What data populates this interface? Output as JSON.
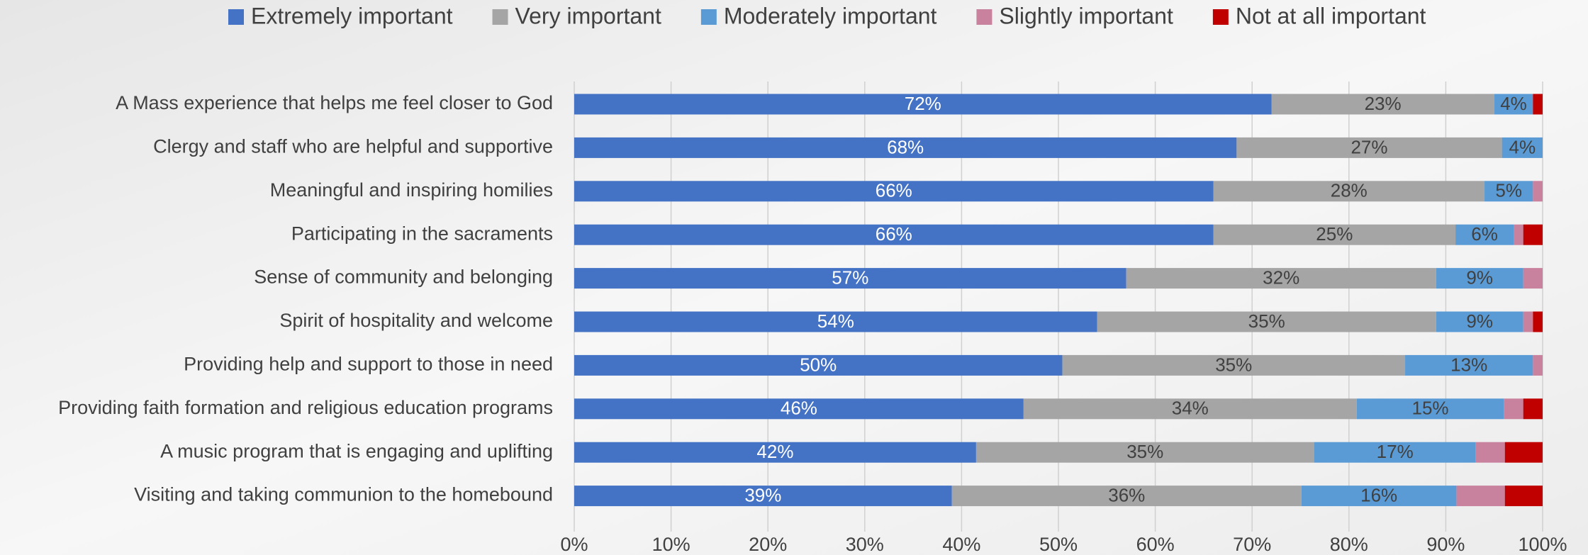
{
  "chart_data": {
    "type": "stacked-bar-horizontal",
    "categories": [
      "A Mass experience that helps me feel closer to God",
      "Clergy and staff who are helpful and supportive",
      "Meaningful and inspiring homilies",
      "Participating in the sacraments",
      "Sense of community and belonging",
      "Spirit of hospitality and welcome",
      "Providing help and support to those in need",
      "Providing faith formation and religious education programs",
      "A music program that is engaging and uplifting",
      "Visiting and taking communion to the homebound"
    ],
    "series": [
      {
        "name": "Extremely important",
        "color": "#4472c4",
        "label_color": "#ffffff",
        "values": [
          72,
          68.4,
          66,
          66,
          57,
          54,
          50.4,
          46.4,
          41.5,
          39
        ],
        "value_labels": [
          "72%",
          "68%",
          "66%",
          "66%",
          "57%",
          "54%",
          "50%",
          "46%",
          "42%",
          "39%"
        ]
      },
      {
        "name": "Very important",
        "color": "#a5a5a5",
        "label_color": "#404040",
        "values": [
          23,
          27.4,
          28,
          25,
          32,
          35,
          35.4,
          34.4,
          34.9,
          36.1
        ],
        "value_labels": [
          "23%",
          "27%",
          "28%",
          "25%",
          "32%",
          "35%",
          "35%",
          "34%",
          "35%",
          "36%"
        ]
      },
      {
        "name": "Moderately important",
        "color": "#5b9bd5",
        "label_color": "#404040",
        "values": [
          4,
          4.2,
          5,
          6,
          9,
          9,
          13.2,
          15.2,
          16.7,
          16
        ],
        "value_labels": [
          "4%",
          "4%",
          "5%",
          "6%",
          "9%",
          "9%",
          "13%",
          "15%",
          "17%",
          "16%"
        ]
      },
      {
        "name": "Slightly important",
        "color": "#c9829e",
        "values": [
          0,
          0,
          1,
          1,
          2,
          1,
          1,
          2,
          3,
          5
        ]
      },
      {
        "name": "Not at all important",
        "color": "#c00000",
        "values": [
          1,
          0,
          0,
          2,
          0,
          1,
          0,
          2,
          3.9,
          3.9
        ]
      }
    ],
    "xlim": [
      0,
      100
    ],
    "xticks": [
      {
        "value": 0,
        "label": "0%"
      },
      {
        "value": 10,
        "label": "10%"
      },
      {
        "value": 20,
        "label": "20%"
      },
      {
        "value": 30,
        "label": "30%"
      },
      {
        "value": 40,
        "label": "40%"
      },
      {
        "value": 50,
        "label": "50%"
      },
      {
        "value": 60,
        "label": "60%"
      },
      {
        "value": 70,
        "label": "70%"
      },
      {
        "value": 80,
        "label": "80%"
      },
      {
        "value": 90,
        "label": "90%"
      },
      {
        "value": 100,
        "label": "100%"
      }
    ],
    "grid": true,
    "legend": "top"
  }
}
